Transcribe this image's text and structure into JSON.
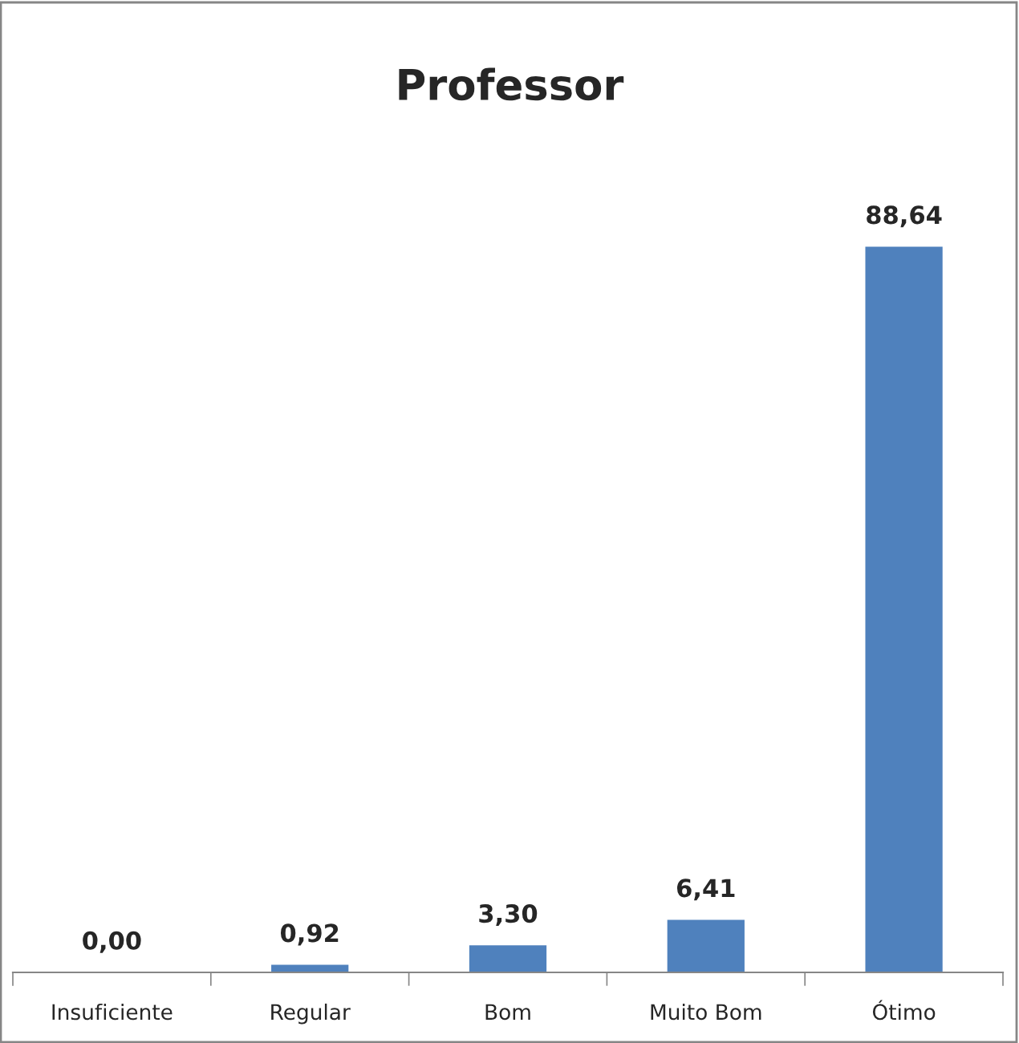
{
  "chart_data": {
    "type": "bar",
    "title": "Professor",
    "categories": [
      "Insuficiente",
      "Regular",
      "Bom",
      "Muito Bom",
      "Ótimo"
    ],
    "values": [
      0.0,
      0.92,
      3.3,
      6.41,
      88.64
    ],
    "value_labels": [
      "0,00",
      "0,92",
      "3,30",
      "6,41",
      "88,64"
    ],
    "color": "#4f81bd",
    "grid": false,
    "legend": false
  }
}
